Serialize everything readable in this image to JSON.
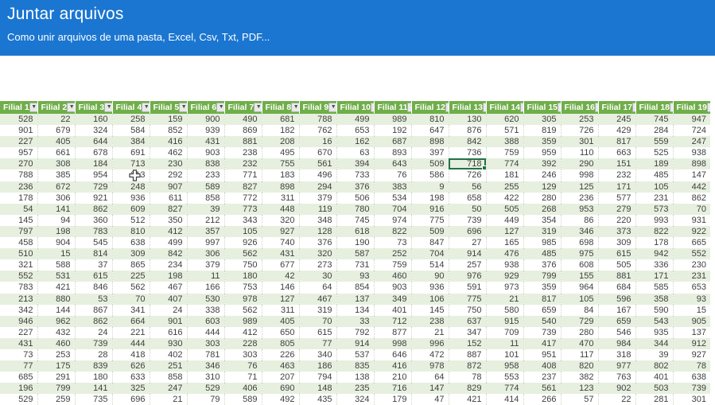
{
  "banner": {
    "title": "Juntar arquivos",
    "subtitle": "Como unir arquivos de uma pasta, Excel, Csv, Txt, PDF..."
  },
  "colors": {
    "banner_bg": "#1b76d1",
    "table_header_bg": "#6fae49",
    "banded_row_green": "#e7f0df",
    "row_white": "#ffffff",
    "selection_border": "#217346",
    "cell_text": "#3f3f3f"
  },
  "table": {
    "columns": [
      "Filial 1",
      "Filial 2",
      "Filial 3",
      "Filial 4",
      "Filial 5",
      "Filial 6",
      "Filial 7",
      "Filial 8",
      "Filial 9",
      "Filial 10",
      "Filial 11",
      "Filial 12",
      "Filial 13",
      "Filial 14",
      "Filial 15",
      "Filial 16",
      "Filial 17",
      "Filial 18",
      "Filial 19"
    ],
    "filter_icon": "▼",
    "selected_cell": {
      "row": 5,
      "col": 13,
      "value": 718
    },
    "cursor_cell": {
      "row": 6,
      "col": 4
    },
    "rows": [
      [
        528,
        22,
        160,
        258,
        159,
        900,
        490,
        681,
        788,
        499,
        989,
        810,
        130,
        620,
        305,
        253,
        245,
        745,
        947
      ],
      [
        901,
        679,
        324,
        584,
        852,
        939,
        869,
        182,
        762,
        653,
        192,
        647,
        876,
        571,
        819,
        726,
        429,
        284,
        724
      ],
      [
        227,
        405,
        644,
        384,
        416,
        431,
        881,
        208,
        16,
        162,
        687,
        898,
        842,
        388,
        359,
        301,
        817,
        559,
        247
      ],
      [
        957,
        661,
        678,
        691,
        462,
        903,
        238,
        495,
        670,
        63,
        893,
        397,
        736,
        759,
        959,
        110,
        663,
        525,
        938
      ],
      [
        270,
        308,
        184,
        713,
        230,
        838,
        232,
        755,
        561,
        394,
        643,
        509,
        718,
        774,
        392,
        290,
        151,
        189,
        898
      ],
      [
        788,
        385,
        954,
        213,
        292,
        233,
        771,
        183,
        496,
        733,
        76,
        586,
        726,
        181,
        246,
        998,
        232,
        485,
        147
      ],
      [
        236,
        672,
        729,
        248,
        907,
        589,
        827,
        898,
        294,
        376,
        383,
        9,
        56,
        255,
        129,
        125,
        171,
        105,
        442
      ],
      [
        178,
        306,
        921,
        936,
        611,
        858,
        772,
        311,
        379,
        506,
        534,
        198,
        658,
        422,
        280,
        236,
        577,
        231,
        862
      ],
      [
        54,
        141,
        862,
        609,
        827,
        39,
        773,
        448,
        119,
        780,
        704,
        916,
        50,
        505,
        268,
        953,
        279,
        573,
        70
      ],
      [
        145,
        94,
        360,
        512,
        350,
        212,
        343,
        320,
        348,
        745,
        974,
        775,
        739,
        449,
        354,
        86,
        220,
        993,
        931
      ],
      [
        797,
        198,
        783,
        810,
        412,
        357,
        105,
        927,
        128,
        618,
        822,
        509,
        696,
        127,
        319,
        346,
        373,
        822,
        922
      ],
      [
        458,
        904,
        545,
        638,
        499,
        997,
        926,
        740,
        376,
        190,
        73,
        847,
        27,
        165,
        985,
        698,
        309,
        178,
        665
      ],
      [
        510,
        15,
        814,
        309,
        842,
        306,
        562,
        431,
        320,
        587,
        252,
        704,
        914,
        476,
        485,
        975,
        615,
        942,
        552
      ],
      [
        321,
        588,
        37,
        865,
        234,
        379,
        750,
        677,
        273,
        731,
        759,
        514,
        257,
        938,
        376,
        608,
        505,
        336,
        230
      ],
      [
        552,
        531,
        615,
        225,
        198,
        11,
        180,
        42,
        30,
        93,
        460,
        90,
        976,
        929,
        799,
        155,
        881,
        171,
        231
      ],
      [
        783,
        421,
        846,
        562,
        467,
        166,
        753,
        146,
        64,
        854,
        903,
        936,
        591,
        973,
        359,
        964,
        684,
        585,
        653
      ],
      [
        213,
        880,
        53,
        70,
        407,
        530,
        978,
        127,
        467,
        137,
        349,
        106,
        775,
        21,
        817,
        105,
        596,
        358,
        93
      ],
      [
        342,
        144,
        867,
        341,
        24,
        338,
        562,
        311,
        319,
        134,
        401,
        145,
        750,
        580,
        659,
        84,
        167,
        590,
        15
      ],
      [
        946,
        962,
        862,
        664,
        901,
        603,
        989,
        405,
        70,
        33,
        712,
        238,
        637,
        915,
        540,
        729,
        659,
        543,
        905
      ],
      [
        227,
        432,
        24,
        221,
        616,
        444,
        412,
        650,
        615,
        792,
        877,
        21,
        347,
        709,
        739,
        280,
        546,
        935,
        137
      ],
      [
        431,
        460,
        739,
        444,
        930,
        303,
        228,
        805,
        77,
        914,
        998,
        996,
        152,
        11,
        417,
        470,
        984,
        344,
        912
      ],
      [
        73,
        253,
        28,
        418,
        402,
        781,
        303,
        226,
        340,
        537,
        646,
        472,
        887,
        101,
        951,
        117,
        318,
        39,
        927
      ],
      [
        77,
        175,
        839,
        626,
        251,
        346,
        76,
        463,
        186,
        835,
        416,
        978,
        872,
        958,
        408,
        820,
        977,
        802,
        78
      ],
      [
        685,
        291,
        180,
        633,
        858,
        310,
        71,
        207,
        794,
        138,
        210,
        64,
        78,
        553,
        237,
        382,
        763,
        401,
        638
      ],
      [
        196,
        799,
        141,
        325,
        247,
        529,
        406,
        690,
        148,
        235,
        716,
        147,
        829,
        774,
        561,
        123,
        902,
        503,
        739
      ],
      [
        529,
        259,
        735,
        696,
        21,
        79,
        589,
        492,
        435,
        324,
        179,
        47,
        421,
        414,
        266,
        57,
        22,
        281,
        301
      ]
    ]
  }
}
